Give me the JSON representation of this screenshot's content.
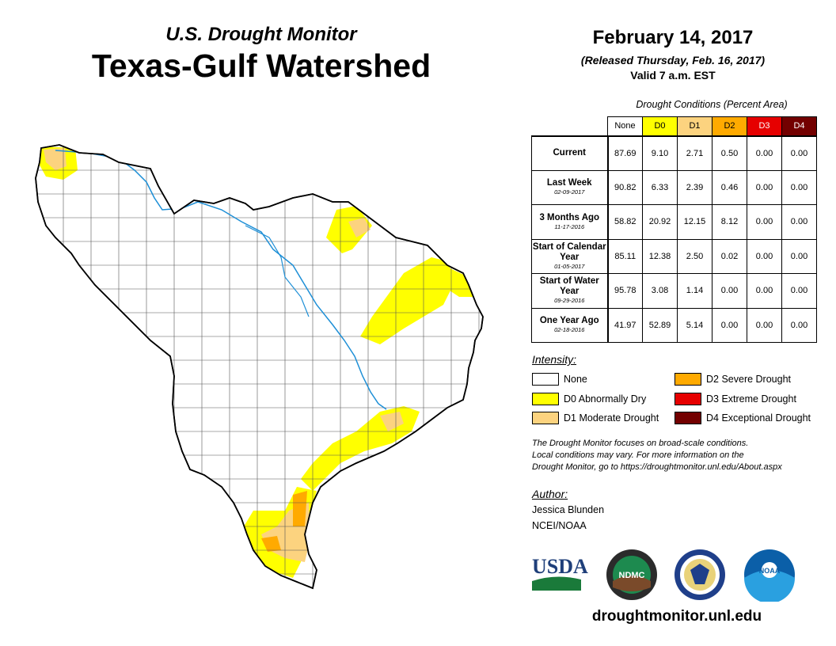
{
  "header": {
    "subtitle": "U.S. Drought Monitor",
    "title": "Texas-Gulf Watershed",
    "date": "February 14, 2017",
    "released": "(Released Thursday, Feb. 16, 2017)",
    "valid": "Valid 7 a.m. EST"
  },
  "table": {
    "caption": "Drought Conditions (Percent Area)",
    "columns": [
      {
        "label": "None",
        "color": "#ffffff"
      },
      {
        "label": "D0",
        "color": "#ffff00"
      },
      {
        "label": "D1",
        "color": "#fcd37f"
      },
      {
        "label": "D2",
        "color": "#ffaa00"
      },
      {
        "label": "D3",
        "color": "#e60000"
      },
      {
        "label": "D4",
        "color": "#730000"
      }
    ],
    "rows": [
      {
        "label": "Current",
        "sublabel": "",
        "values": [
          "87.69",
          "9.10",
          "2.71",
          "0.50",
          "0.00",
          "0.00"
        ]
      },
      {
        "label": "Last Week",
        "sublabel": "02-09-2017",
        "values": [
          "90.82",
          "6.33",
          "2.39",
          "0.46",
          "0.00",
          "0.00"
        ]
      },
      {
        "label": "3 Months Ago",
        "sublabel": "11-17-2016",
        "values": [
          "58.82",
          "20.92",
          "12.15",
          "8.12",
          "0.00",
          "0.00"
        ]
      },
      {
        "label": "Start of Calendar Year",
        "sublabel": "01-05-2017",
        "values": [
          "85.11",
          "12.38",
          "2.50",
          "0.02",
          "0.00",
          "0.00"
        ]
      },
      {
        "label": "Start of Water Year",
        "sublabel": "09-29-2016",
        "values": [
          "95.78",
          "3.08",
          "1.14",
          "0.00",
          "0.00",
          "0.00"
        ]
      },
      {
        "label": "One Year Ago",
        "sublabel": "02-18-2016",
        "values": [
          "41.97",
          "52.89",
          "5.14",
          "0.00",
          "0.00",
          "0.00"
        ]
      }
    ]
  },
  "legend": {
    "title": "Intensity:",
    "items": [
      {
        "label": "None",
        "color": "#ffffff"
      },
      {
        "label": "D0 Abnormally Dry",
        "color": "#ffff00"
      },
      {
        "label": "D1 Moderate Drought",
        "color": "#fcd37f"
      },
      {
        "label": "D2 Severe Drought",
        "color": "#ffaa00"
      },
      {
        "label": "D3 Extreme Drought",
        "color": "#e60000"
      },
      {
        "label": "D4 Exceptional Drought",
        "color": "#730000"
      }
    ]
  },
  "disclaimer": {
    "line1": "The Drought Monitor focuses on broad-scale conditions.",
    "line2": "Local conditions may vary. For more information on the",
    "line3": "Drought Monitor, go to https://droughtmonitor.unl.edu/About.aspx"
  },
  "author": {
    "title": "Author:",
    "name": "Jessica Blunden",
    "org": "NCEI/NOAA"
  },
  "logos": {
    "usda": "USDA",
    "ndmc": "NDMC",
    "noaa": "NOAA"
  },
  "url": "droughtmonitor.unl.edu",
  "map": {
    "river_color": "#1e8fd6",
    "county_line_color": "#555555"
  }
}
